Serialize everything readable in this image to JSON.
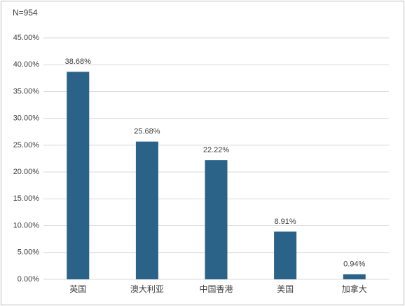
{
  "chart_data": {
    "type": "bar",
    "annotation": "N=954",
    "categories": [
      "英国",
      "澳大利亚",
      "中国香港",
      "美国",
      "加拿大"
    ],
    "values": [
      38.68,
      25.68,
      22.22,
      8.91,
      0.94
    ],
    "value_labels": [
      "38.68%",
      "25.68%",
      "22.22%",
      "8.91%",
      "0.94%"
    ],
    "color": "#2b6287",
    "ylim": [
      0,
      45
    ],
    "yticks": [
      {
        "value": 0,
        "label": "0.00%"
      },
      {
        "value": 5,
        "label": "5.00%"
      },
      {
        "value": 10,
        "label": "10.00%"
      },
      {
        "value": 15,
        "label": "15.00%"
      },
      {
        "value": 20,
        "label": "20.00%"
      },
      {
        "value": 25,
        "label": "25.00%"
      },
      {
        "value": 30,
        "label": "30.00%"
      },
      {
        "value": 35,
        "label": "35.00%"
      },
      {
        "value": 40,
        "label": "40.00%"
      },
      {
        "value": 45,
        "label": "45.00%"
      }
    ],
    "grid": true
  }
}
